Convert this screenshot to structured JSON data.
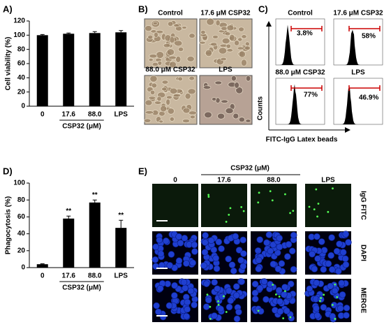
{
  "chart_data": [
    {
      "type": "bar",
      "panel_label": "A)",
      "ylabel": "Cell viability (%)",
      "xlabel": "CSP32 (μM)",
      "categories": [
        "0",
        "17.6",
        "88.0",
        "LPS"
      ],
      "values": [
        100,
        102,
        103,
        104
      ],
      "errors": [
        1,
        1,
        2,
        2.5
      ],
      "color": "#000000",
      "ylim": [
        0,
        120
      ],
      "yticks": [
        0,
        20,
        40,
        60,
        80,
        100,
        120
      ]
    },
    {
      "type": "bar",
      "panel_label": "D)",
      "ylabel": "Phagocytosis (%)",
      "xlabel": "CSP32 (μM)",
      "categories": [
        "0",
        "17.6",
        "88.0",
        "LPS"
      ],
      "values": [
        4,
        58,
        77,
        47
      ],
      "errors": [
        0.5,
        3,
        3,
        9
      ],
      "annotations": [
        null,
        "**",
        "**",
        "**"
      ],
      "color": "#000000",
      "ylim": [
        0,
        100
      ],
      "yticks": [
        0,
        20,
        40,
        60,
        80,
        100
      ]
    }
  ],
  "panels": {
    "B": {
      "label": "B)",
      "images": [
        "Control",
        "17.6 μM CSP32",
        "88.0 μM CSP32",
        "LPS"
      ]
    },
    "C": {
      "label": "C)",
      "y_axis": "Counts",
      "x_axis": "FITC-IgG Latex beads",
      "plots": [
        {
          "name": "Control",
          "percent": "3.8%"
        },
        {
          "name": "17.6 μM CSP32",
          "percent": "58%"
        },
        {
          "name": "88.0 μM CSP32",
          "percent": "77%"
        },
        {
          "name": "LPS",
          "percent": "46.9%"
        }
      ]
    },
    "E": {
      "label": "E)",
      "group_label": "CSP32  (μM)",
      "columns": [
        "0",
        "17.6",
        "88.0",
        "LPS"
      ],
      "rows": [
        "IgG FITC",
        "DAPI",
        "MERGE"
      ]
    }
  }
}
